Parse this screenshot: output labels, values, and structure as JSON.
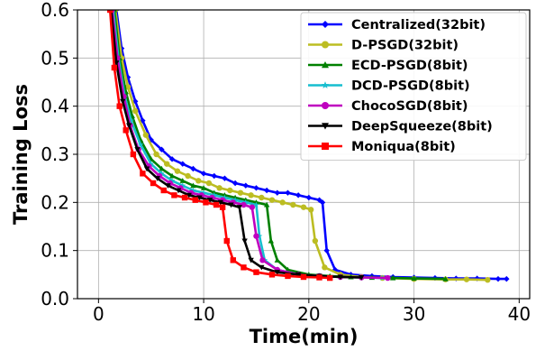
{
  "chart_data": {
    "type": "line",
    "xlabel": "Time(min)",
    "ylabel": "Training Loss",
    "xlim": [
      -2,
      41
    ],
    "ylim": [
      0,
      0.6
    ],
    "xticks": [
      0,
      10,
      20,
      30,
      40
    ],
    "xtick_labels": [
      "0",
      "10",
      "20",
      "30",
      "40"
    ],
    "yticks": [
      0,
      0.1,
      0.2,
      0.3,
      0.4,
      0.5,
      0.6
    ],
    "ytick_labels": [
      "0.0",
      "0.1",
      "0.2",
      "0.3",
      "0.4",
      "0.5",
      "0.6"
    ],
    "grid": true,
    "legend_position": "top-right",
    "series": [
      {
        "name": "Centralized(32bit)",
        "color": "#0000ff",
        "marker": "diamond",
        "x": [
          1.7,
          2.2,
          2.8,
          3.5,
          4.2,
          5.0,
          6.0,
          7.0,
          8.0,
          9.0,
          10.0,
          11.0,
          12.0,
          13.0,
          14.0,
          15.0,
          16.0,
          17.0,
          18.0,
          19.0,
          20.0,
          21.0,
          21.3,
          21.7,
          22.5,
          24.0,
          26.0,
          28.0,
          30.0,
          32.0,
          34.0,
          36.0,
          38.0,
          38.8
        ],
        "y": [
          0.6,
          0.52,
          0.46,
          0.41,
          0.37,
          0.33,
          0.31,
          0.29,
          0.28,
          0.27,
          0.26,
          0.255,
          0.25,
          0.24,
          0.235,
          0.23,
          0.225,
          0.22,
          0.22,
          0.215,
          0.21,
          0.205,
          0.2,
          0.1,
          0.06,
          0.05,
          0.047,
          0.045,
          0.044,
          0.043,
          0.042,
          0.042,
          0.041,
          0.041
        ]
      },
      {
        "name": "D-PSGD(32bit)",
        "color": "#bcbd22",
        "marker": "circle",
        "x": [
          1.6,
          2.2,
          2.8,
          3.5,
          4.5,
          5.5,
          6.5,
          7.5,
          8.5,
          9.5,
          10.5,
          11.5,
          12.5,
          13.5,
          14.5,
          15.5,
          16.5,
          17.5,
          18.5,
          19.5,
          20.2,
          20.6,
          21.5,
          23.0,
          25.0,
          27.0,
          30.0,
          33.0,
          35.0,
          37.0
        ],
        "y": [
          0.6,
          0.5,
          0.44,
          0.39,
          0.34,
          0.3,
          0.28,
          0.265,
          0.255,
          0.245,
          0.24,
          0.23,
          0.225,
          0.22,
          0.215,
          0.21,
          0.205,
          0.2,
          0.195,
          0.19,
          0.185,
          0.12,
          0.065,
          0.05,
          0.045,
          0.043,
          0.041,
          0.04,
          0.04,
          0.039
        ]
      },
      {
        "name": "ECD-PSGD(8bit)",
        "color": "#008000",
        "marker": "triangle",
        "x": [
          1.5,
          2.0,
          2.6,
          3.2,
          4.0,
          5.0,
          6.0,
          7.0,
          8.0,
          9.0,
          10.0,
          11.0,
          12.0,
          13.0,
          14.0,
          15.0,
          16.0,
          16.4,
          17.0,
          18.0,
          20.0,
          22.0,
          24.0,
          26.0,
          28.0,
          30.0,
          33.0
        ],
        "y": [
          0.6,
          0.5,
          0.43,
          0.38,
          0.33,
          0.29,
          0.27,
          0.255,
          0.245,
          0.235,
          0.23,
          0.22,
          0.215,
          0.21,
          0.205,
          0.2,
          0.195,
          0.12,
          0.08,
          0.06,
          0.05,
          0.047,
          0.045,
          0.044,
          0.043,
          0.042,
          0.041
        ]
      },
      {
        "name": "DCD-PSGD(8bit)",
        "color": "#17becf",
        "marker": "star",
        "x": [
          1.4,
          1.9,
          2.5,
          3.1,
          4.0,
          5.0,
          6.0,
          7.0,
          8.0,
          9.0,
          10.0,
          11.0,
          12.0,
          13.0,
          14.0,
          15.0,
          15.3,
          15.8,
          17.0,
          19.0,
          21.0,
          23.0,
          25.0,
          27.0
        ],
        "y": [
          0.6,
          0.5,
          0.42,
          0.37,
          0.32,
          0.28,
          0.26,
          0.245,
          0.235,
          0.225,
          0.22,
          0.215,
          0.21,
          0.205,
          0.2,
          0.195,
          0.13,
          0.08,
          0.06,
          0.05,
          0.047,
          0.045,
          0.044,
          0.043
        ]
      },
      {
        "name": "ChocoSGD(8bit)",
        "color": "#bf00bf",
        "marker": "circle",
        "x": [
          1.3,
          1.8,
          2.4,
          3.0,
          3.8,
          4.8,
          5.8,
          6.8,
          7.8,
          8.8,
          9.8,
          10.8,
          11.8,
          12.8,
          13.8,
          14.6,
          15.0,
          15.6,
          17.0,
          19.0,
          21.0,
          23.0,
          25.0,
          27.5
        ],
        "y": [
          0.6,
          0.5,
          0.42,
          0.36,
          0.31,
          0.275,
          0.255,
          0.24,
          0.23,
          0.22,
          0.215,
          0.21,
          0.205,
          0.2,
          0.195,
          0.19,
          0.13,
          0.08,
          0.06,
          0.05,
          0.047,
          0.045,
          0.044,
          0.043
        ]
      },
      {
        "name": "DeepSqueeze(8bit)",
        "color": "#000000",
        "marker": "triangle-down",
        "x": [
          1.2,
          1.7,
          2.3,
          2.9,
          3.7,
          4.6,
          5.6,
          6.6,
          7.6,
          8.6,
          9.6,
          10.6,
          11.6,
          12.6,
          13.4,
          13.9,
          14.5,
          15.5,
          17.0,
          19.0,
          21.0,
          23.0,
          25.0
        ],
        "y": [
          0.6,
          0.49,
          0.41,
          0.36,
          0.31,
          0.27,
          0.25,
          0.235,
          0.225,
          0.215,
          0.21,
          0.205,
          0.2,
          0.195,
          0.19,
          0.12,
          0.08,
          0.065,
          0.055,
          0.05,
          0.047,
          0.045,
          0.044
        ]
      },
      {
        "name": "Moniqua(8bit)",
        "color": "#ff0000",
        "marker": "square",
        "x": [
          1.1,
          1.5,
          2.0,
          2.6,
          3.3,
          4.2,
          5.2,
          6.2,
          7.2,
          8.2,
          9.2,
          10.2,
          11.2,
          11.8,
          12.2,
          12.8,
          13.8,
          15.0,
          16.5,
          18.0,
          19.5,
          21.0,
          22.0
        ],
        "y": [
          0.6,
          0.48,
          0.4,
          0.35,
          0.3,
          0.26,
          0.24,
          0.225,
          0.215,
          0.21,
          0.205,
          0.2,
          0.195,
          0.19,
          0.12,
          0.08,
          0.065,
          0.055,
          0.05,
          0.047,
          0.045,
          0.044,
          0.043
        ]
      }
    ]
  }
}
